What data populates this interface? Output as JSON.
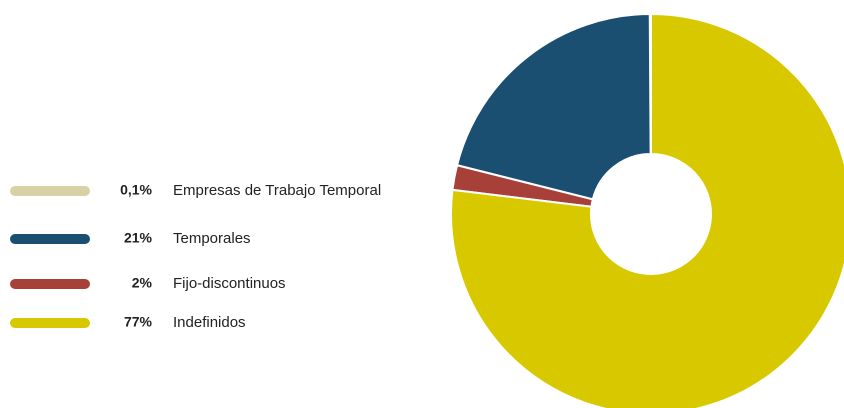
{
  "chart_data": {
    "type": "donut",
    "categories": [
      "Empresas de Trabajo Temporal",
      "Temporales",
      "Fijo-discontinuos",
      "Indefinidos"
    ],
    "values": [
      0.1,
      21,
      2,
      77
    ],
    "value_labels": [
      "0,1%",
      "21%",
      "2%",
      "77%"
    ],
    "colors": [
      "#d8d1a6",
      "#1a4f72",
      "#a8403a",
      "#d8c800"
    ],
    "direction": "counterclockwise",
    "legend": "left"
  }
}
